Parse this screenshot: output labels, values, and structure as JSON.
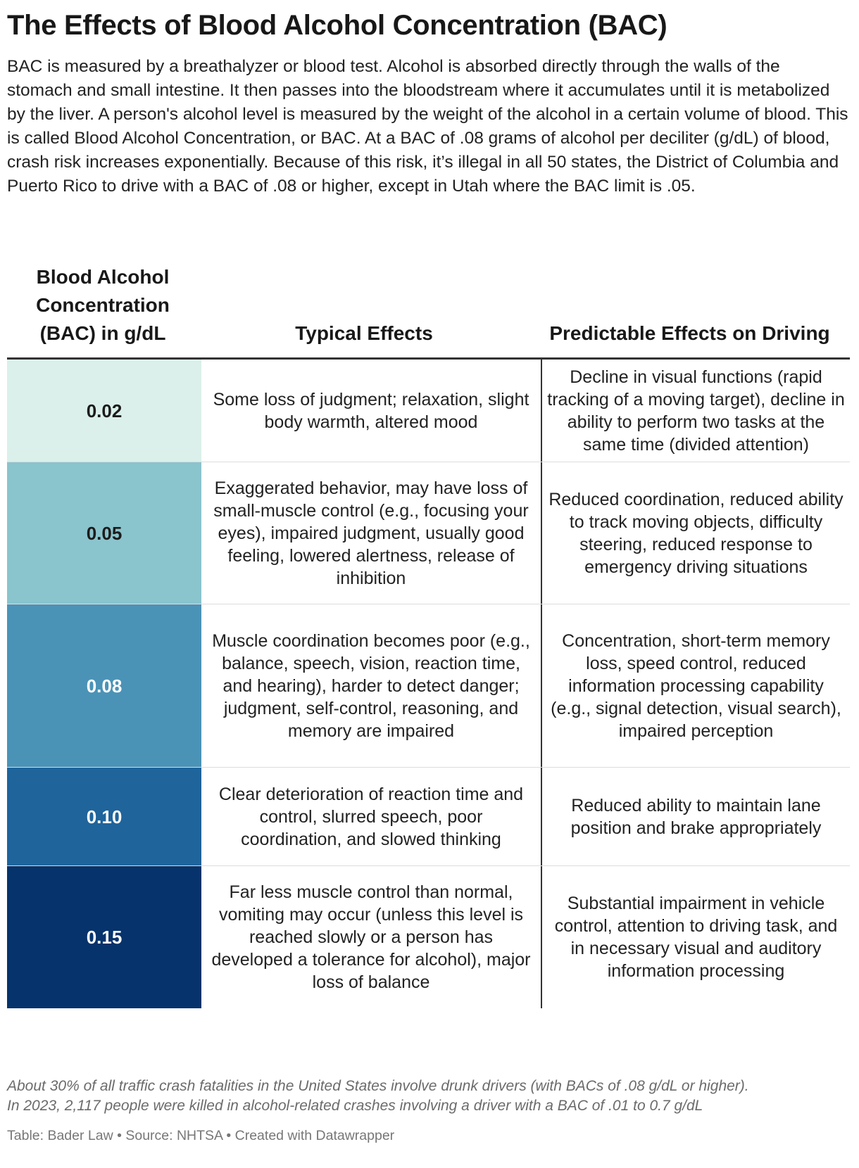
{
  "title": "The Effects of Blood Alcohol Concentration (BAC)",
  "description": "BAC is measured by a breathalyzer or blood test. Alcohol is absorbed directly through the walls of the stomach and small intestine. It then passes into the bloodstream where it accumulates until it is metabolized by the liver. A person's alcohol level is measured by the weight of the alcohol in a certain volume of blood. This is called Blood Alcohol Concentration, or BAC. At a BAC of .08 grams of alcohol per deciliter (g/dL) of blood, crash risk increases exponentially. Because of this risk, it’s illegal in all 50 states, the District of Columbia and Puerto Rico to drive with a BAC of .08 or higher, except in Utah where the BAC limit is .05.",
  "table": {
    "headers": [
      "Blood Alcohol Concentration (BAC) in g/dL",
      "Typical Effects",
      "Predictable Effects on Driving"
    ],
    "rows": [
      {
        "bac": "0.02",
        "bg": "#dbf0ea",
        "fg": "#1c1c1c",
        "effects": "Some loss of judgment; relaxation, slight body warmth, altered mood",
        "driving": "Decline in visual functions (rapid tracking of a moving target), decline in ability to perform two tasks at the same time (divided attention)"
      },
      {
        "bac": "0.05",
        "bg": "#8ac4cd",
        "fg": "#1c1c1c",
        "effects": "Exaggerated behavior, may have loss of small-muscle control (e.g., focusing your eyes), impaired judgment, usually good feeling, lowered alertness, release of inhibition",
        "driving": "Reduced coordination, reduced ability to track moving objects, difficulty steering, reduced response to emergency driving situations"
      },
      {
        "bac": "0.08",
        "bg": "#4a93b7",
        "fg": "#ffffff",
        "effects": "Muscle coordination becomes poor (e.g., balance, speech, vision, reaction time, and hearing), harder to detect danger; judgment, self-control, reasoning, and memory are impaired",
        "driving": "Concentration, short-term memory loss, speed control, reduced information processing capability (e.g., signal detection, visual search), impaired perception"
      },
      {
        "bac": "0.10",
        "bg": "#1f649b",
        "fg": "#ffffff",
        "effects": "Clear deterioration of reaction time and control, slurred speech, poor coordination, and slowed thinking",
        "driving": "Reduced ability to maintain lane position and brake appropriately"
      },
      {
        "bac": "0.15",
        "bg": "#06336b",
        "fg": "#ffffff",
        "effects": "Far less muscle control than normal, vomiting may occur (unless this level is reached slowly or a person has developed a tolerance for alcohol), major loss of balance",
        "driving": "Substantial impairment in vehicle control, attention to driving task, and in necessary visual and auditory information processing"
      }
    ]
  },
  "notes": [
    "About 30% of all traffic crash fatalities in the United States involve drunk drivers (with BACs of .08 g/dL or higher).",
    "In 2023, 2,117 people were killed in alcohol-related crashes involving a driver with a BAC of .01 to 0.7 g/dL"
  ],
  "source_line": "Table: Bader Law  • Source: NHTSA • Created with Datawrapper",
  "chart_data": {
    "type": "table",
    "title": "The Effects of Blood Alcohol Concentration (BAC)",
    "columns": [
      "Blood Alcohol Concentration (BAC) in g/dL",
      "Typical Effects",
      "Predictable Effects on Driving"
    ],
    "bac_values": [
      0.02,
      0.05,
      0.08,
      0.1,
      0.15
    ],
    "color_scale": [
      "#dbf0ea",
      "#8ac4cd",
      "#4a93b7",
      "#1f649b",
      "#06336b"
    ]
  }
}
